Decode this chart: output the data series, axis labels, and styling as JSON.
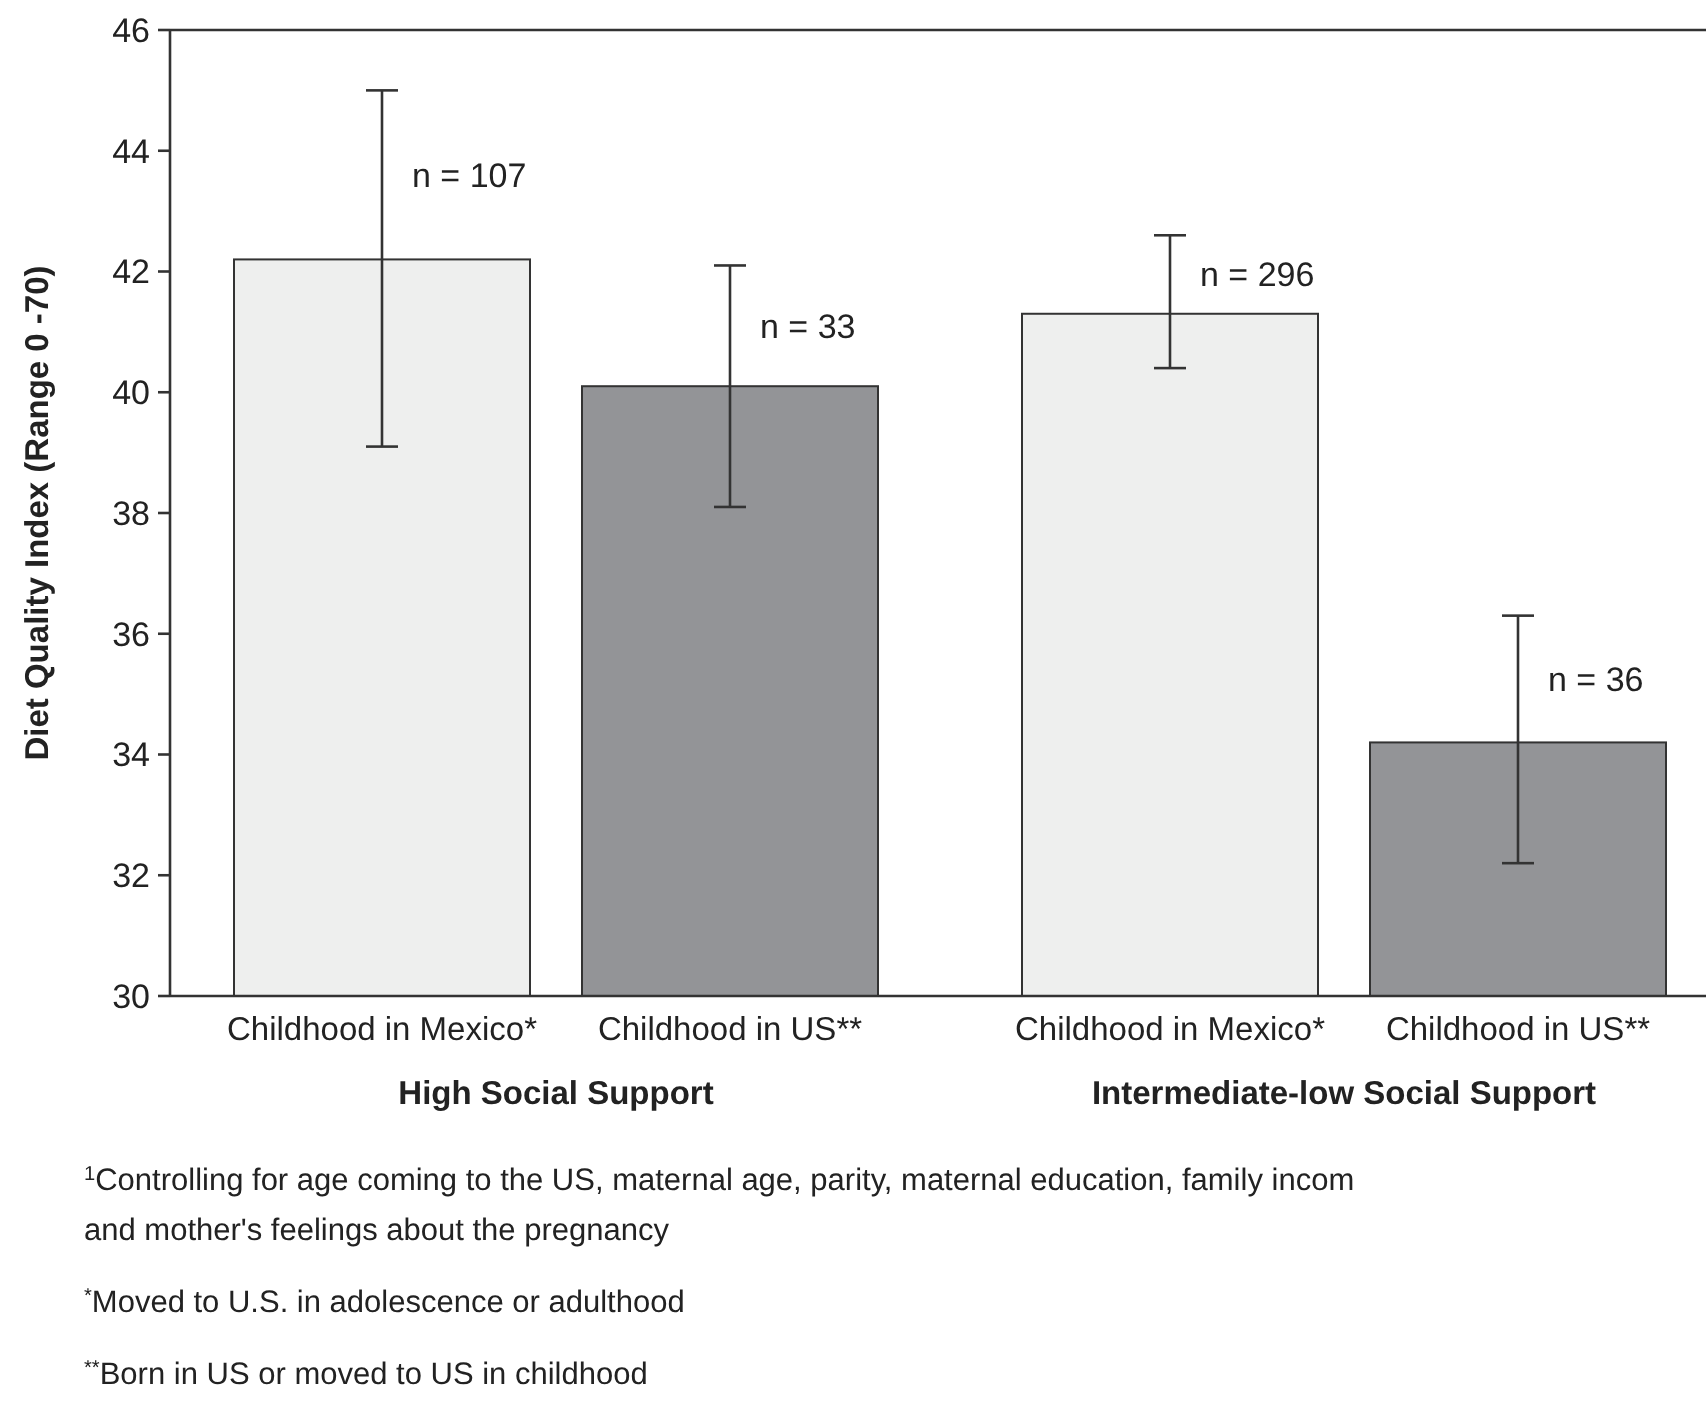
{
  "chart_data": {
    "type": "bar",
    "ylabel": "Diet Quality Index (Range 0 -70)",
    "categories": [
      "Childhood in Mexico*",
      "Childhood in US**",
      "Childhood in Mexico*",
      "Childhood in US**"
    ],
    "values": [
      42.2,
      40.1,
      41.3,
      34.2
    ],
    "colors": [
      "#eeefee",
      "#939497",
      "#eeefee",
      "#939497"
    ],
    "errors": [
      [
        39.1,
        45.0
      ],
      [
        38.1,
        42.1
      ],
      [
        40.4,
        42.6
      ],
      [
        32.2,
        36.3
      ]
    ],
    "ylim": [
      30,
      46
    ],
    "yticks": [
      30,
      32,
      34,
      36,
      38,
      40,
      42,
      44,
      46
    ],
    "grid": false,
    "annotations": [
      "High Social Support",
      "Intermediate-low Social Support",
      "n = 107",
      "n = 33",
      "n = 296",
      "n = 36",
      "$^{1}$Controlling for age coming to the US, maternal age, parity, maternal education, family incom and mother's feelings about the pregnancy",
      "$^{*}$Moved to U.S. in adolescence or adulthood",
      "$^{**}$Born in US or moved to US in childhood"
    ]
  }
}
